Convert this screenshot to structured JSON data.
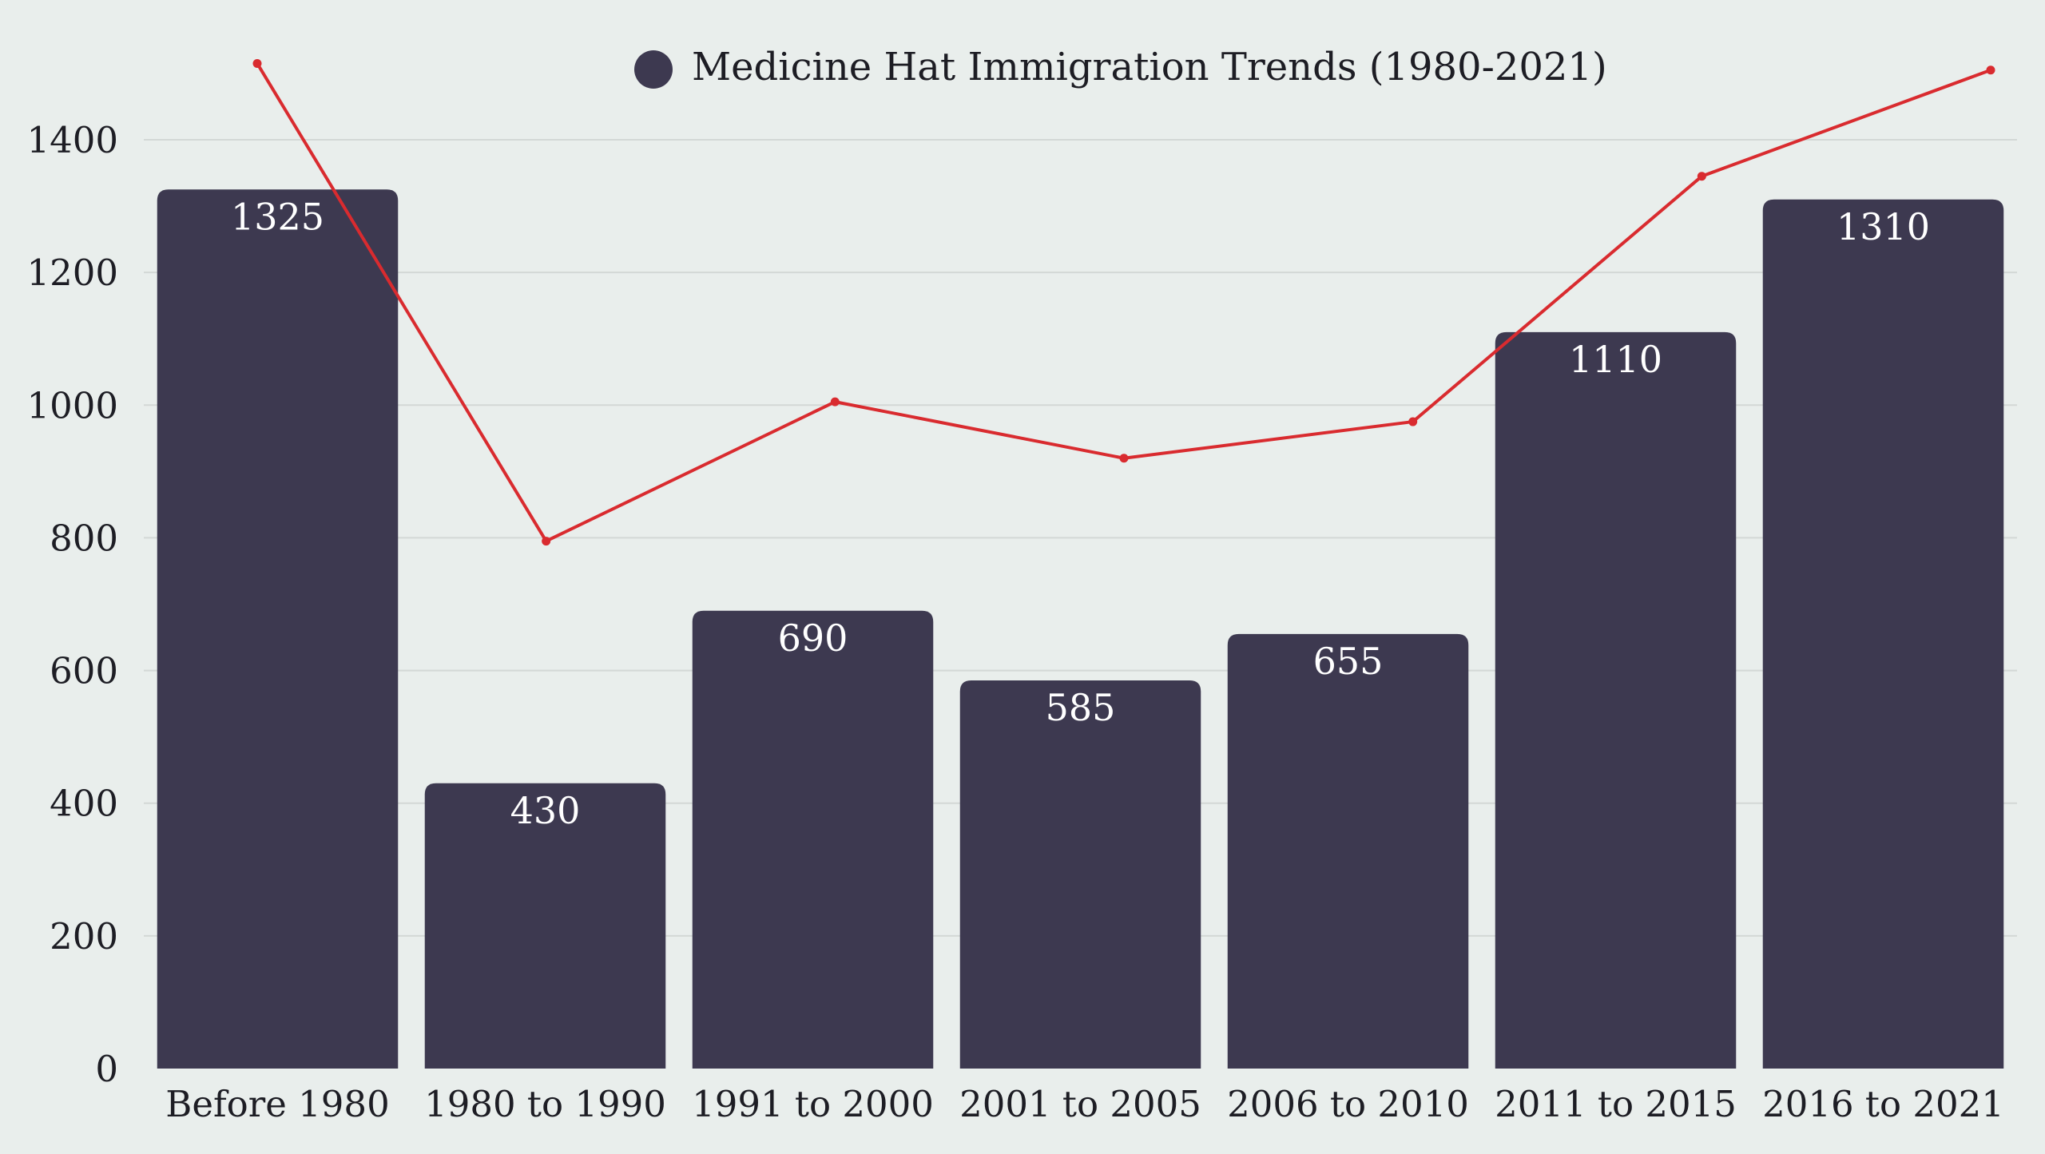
{
  "chart_data": {
    "type": "bar",
    "title": "",
    "xlabel": "",
    "ylabel": "",
    "ylim": [
      0,
      1400
    ],
    "yticks": [
      0,
      200,
      400,
      600,
      800,
      1000,
      1200,
      1400
    ],
    "grid": "horizontal",
    "legend": {
      "position": "top-center",
      "entries": [
        "Medicine Hat Immigration Trends (1980-2021)"
      ]
    },
    "categories": [
      "Before 1980",
      "1980 to 1990",
      "1991 to 2000",
      "2001 to 2005",
      "2006 to 2010",
      "2011 to 2015",
      "2016 to 2021"
    ],
    "series": [
      {
        "name": "Medicine Hat Immigration Trends (1980-2021)",
        "kind": "bar",
        "values": [
          1325,
          430,
          690,
          585,
          655,
          1110,
          1310
        ],
        "data_labels": [
          "1325",
          "430",
          "690",
          "585",
          "655",
          "1110",
          "1310"
        ],
        "color": "#3d3950"
      },
      {
        "kind": "line",
        "values": [
          1515,
          795,
          1005,
          920,
          975,
          1345,
          1505
        ],
        "color": "#d92b2f"
      }
    ],
    "colors": {
      "background": "#e9eeec",
      "grid": "#d3d8d6",
      "text": "#1d1d24",
      "bar": "#3d3950",
      "bar_label": "#ffffff",
      "line": "#d92b2f"
    }
  }
}
